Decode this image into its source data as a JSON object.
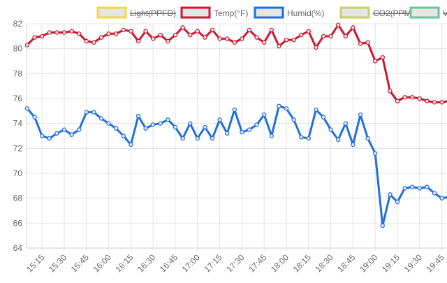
{
  "chart_data": {
    "type": "line",
    "ylim": [
      64,
      82
    ],
    "yticks": [
      64,
      66,
      68,
      70,
      72,
      74,
      76,
      78,
      80,
      82
    ],
    "grid": true,
    "legend_position": "top-right",
    "x_tick_labels": [
      "15:15",
      "15:30",
      "15:45",
      "16:00",
      "16:15",
      "16:30",
      "16:45",
      "17:00",
      "17:15",
      "17:30",
      "17:45",
      "18:00",
      "18:15",
      "18:30",
      "18:45",
      "19:00",
      "19:15",
      "19:30",
      "19:45"
    ],
    "x": [
      "15:05",
      "15:10",
      "15:15",
      "15:20",
      "15:25",
      "15:30",
      "15:35",
      "15:40",
      "15:45",
      "15:50",
      "15:55",
      "16:00",
      "16:05",
      "16:10",
      "16:15",
      "16:20",
      "16:25",
      "16:30",
      "16:35",
      "16:40",
      "16:45",
      "16:50",
      "16:55",
      "17:00",
      "17:05",
      "17:10",
      "17:15",
      "17:20",
      "17:25",
      "17:30",
      "17:35",
      "17:40",
      "17:45",
      "17:50",
      "17:55",
      "18:00",
      "18:05",
      "18:10",
      "18:15",
      "18:20",
      "18:25",
      "18:30",
      "18:35",
      "18:40",
      "18:45",
      "18:50",
      "18:55",
      "19:00",
      "19:05",
      "19:10",
      "19:15",
      "19:20",
      "19:25",
      "19:30",
      "19:35",
      "19:40",
      "19:45",
      "19:50"
    ],
    "legend": [
      {
        "name": "Light(PPFD)",
        "color": "#f0d84a",
        "fill": "#e5e5e5",
        "hidden": true
      },
      {
        "name": "Temp(°F)",
        "color": "#d0152e",
        "fill": "#e5e5e5",
        "hidden": false
      },
      {
        "name": "Humid(%)",
        "color": "#1f6fde",
        "fill": "#e5e5e5",
        "hidden": false
      },
      {
        "name": "CO2(PPM)",
        "color": "#c7d06a",
        "fill": "#e5e5e5",
        "hidden": true
      },
      {
        "name": "V",
        "color": "#6cc49a",
        "fill": "#e5e5e5",
        "hidden": true
      }
    ],
    "series": [
      {
        "name": "Temp(°F)",
        "color": "#d0152e",
        "values": [
          80.3,
          80.9,
          81.0,
          81.3,
          81.3,
          81.3,
          81.4,
          81.2,
          80.6,
          80.5,
          80.9,
          81.2,
          81.2,
          81.5,
          81.4,
          80.6,
          81.4,
          80.8,
          81.1,
          80.6,
          81.1,
          81.7,
          81.1,
          81.4,
          80.9,
          81.5,
          80.8,
          80.8,
          80.5,
          80.8,
          81.5,
          80.9,
          80.5,
          81.5,
          80.2,
          80.7,
          80.7,
          81.1,
          81.4,
          80.1,
          81.0,
          81.0,
          81.9,
          81.0,
          81.7,
          80.4,
          80.5,
          79.0,
          79.3,
          76.6,
          75.8,
          76.1,
          76.1,
          76.0,
          75.8,
          75.7,
          75.7,
          75.8
        ]
      },
      {
        "name": "Humid(%)",
        "color": "#1f6fde",
        "values": [
          75.2,
          74.5,
          73.0,
          72.8,
          73.2,
          73.5,
          73.1,
          73.5,
          74.9,
          74.9,
          74.4,
          74.0,
          73.6,
          73.0,
          72.3,
          74.6,
          73.6,
          73.9,
          74.0,
          74.3,
          73.7,
          72.8,
          74.0,
          72.8,
          73.7,
          72.8,
          74.3,
          73.2,
          75.1,
          73.3,
          73.5,
          73.9,
          74.7,
          73.0,
          75.4,
          75.2,
          74.3,
          72.9,
          72.8,
          75.1,
          74.5,
          73.5,
          72.7,
          74.0,
          72.3,
          74.7,
          72.8,
          71.6,
          65.8,
          68.3,
          67.7,
          68.8,
          68.9,
          68.8,
          68.9,
          68.4,
          68.0,
          68.1
        ]
      }
    ]
  }
}
